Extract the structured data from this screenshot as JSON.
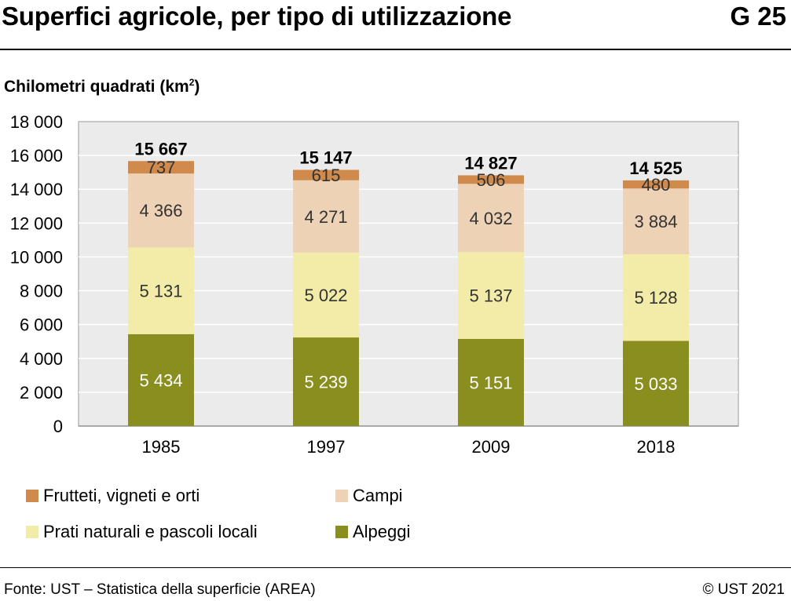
{
  "header": {
    "title": "Superfici agricole, per tipo di utilizzazione",
    "code": "G 25"
  },
  "unit_label": "Chilometri quadrati (km",
  "unit_sup": "2",
  "unit_close": ")",
  "chart_data": {
    "type": "bar",
    "stacked": true,
    "ylabel": "Chilometri quadrati (km²)",
    "ylim": [
      0,
      18000
    ],
    "yticks": [
      0,
      2000,
      4000,
      6000,
      8000,
      10000,
      12000,
      14000,
      16000,
      18000
    ],
    "ytick_labels": [
      "0",
      "2 000",
      "4 000",
      "6 000",
      "8 000",
      "10 000",
      "12 000",
      "14 000",
      "16 000",
      "18 000"
    ],
    "categories": [
      "1985",
      "1997",
      "2009",
      "2018"
    ],
    "series": [
      {
        "name": "Alpeggi",
        "color": "#8a8e1e",
        "label_color": "#ffffff",
        "values": [
          5434,
          5239,
          5151,
          5033
        ],
        "labels": [
          "5 434",
          "5 239",
          "5 151",
          "5 033"
        ]
      },
      {
        "name": "Prati naturali e pascoli locali",
        "color": "#f3eca8",
        "label_color": "#333333",
        "values": [
          5131,
          5022,
          5137,
          5128
        ],
        "labels": [
          "5 131",
          "5 022",
          "5 137",
          "5 128"
        ]
      },
      {
        "name": "Campi",
        "color": "#edd2b6",
        "label_color": "#333333",
        "values": [
          4366,
          4271,
          4032,
          3884
        ],
        "labels": [
          "4 366",
          "4 271",
          "4 032",
          "3 884"
        ]
      },
      {
        "name": "Frutteti, vigneti e orti",
        "color": "#d08a4c",
        "label_color": "#333333",
        "values": [
          737,
          615,
          506,
          480
        ],
        "labels": [
          "737",
          "615",
          "506",
          "480"
        ]
      }
    ],
    "totals": [
      "15 667",
      "15 147",
      "14 827",
      "14 525"
    ],
    "plot_background": "#ebebeb",
    "grid": true,
    "legend_position": "bottom"
  },
  "legend": [
    {
      "label": "Frutteti, vigneti e orti",
      "color": "#d08a4c"
    },
    {
      "label": "Campi",
      "color": "#edd2b6"
    },
    {
      "label": "Prati naturali e pascoli locali",
      "color": "#f3eca8"
    },
    {
      "label": "Alpeggi",
      "color": "#8a8e1e"
    }
  ],
  "footer": {
    "source": "Fonte: UST – Statistica della superficie (AREA)",
    "copyright": "© UST 2021"
  }
}
